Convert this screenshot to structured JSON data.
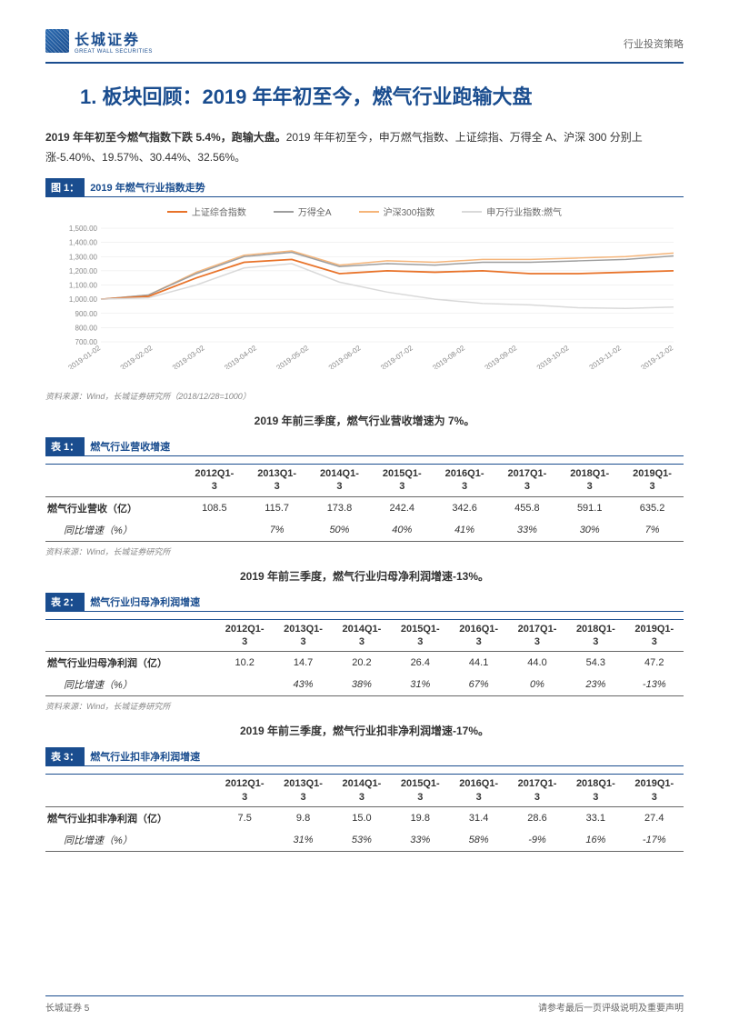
{
  "header": {
    "logo_cn": "长城证券",
    "logo_en": "GREAT WALL SECURITIES",
    "right_text": "行业投资策略"
  },
  "h1": "1. 板块回顾：2019 年年初至今，燃气行业跑输大盘",
  "intro": {
    "bold": "2019 年年初至今燃气指数下跌 5.4%，跑输大盘。",
    "rest": "2019 年年初至今，申万燃气指数、上证综指、万得全 A、沪深 300 分别上涨-5.40%、19.57%、30.44%、32.56%。"
  },
  "chart": {
    "fig_tag": "图 1：",
    "fig_caption": "2019 年燃气行业指数走势",
    "type": "line",
    "legend": [
      {
        "label": "上证综合指数",
        "color": "#e8732a"
      },
      {
        "label": "万得全A",
        "color": "#9e9e9e"
      },
      {
        "label": "沪深300指数",
        "color": "#f5b57a"
      },
      {
        "label": "申万行业指数:燃气",
        "color": "#d9d9d9"
      }
    ],
    "y_ticks": [
      "1,500.00",
      "1,400.00",
      "1,300.00",
      "1,200.00",
      "1,100.00",
      "1,000.00",
      "900.00",
      "800.00",
      "700.00"
    ],
    "ylim": [
      700,
      1500
    ],
    "x_labels": [
      "2019-01-02",
      "2019-02-02",
      "2019-03-02",
      "2019-04-02",
      "2019-05-02",
      "2019-06-02",
      "2019-07-02",
      "2019-08-02",
      "2019-09-02",
      "2019-10-02",
      "2019-11-02",
      "2019-12-02"
    ],
    "series": {
      "szzs": [
        1000,
        1020,
        1150,
        1260,
        1280,
        1180,
        1200,
        1190,
        1200,
        1180,
        1180,
        1190,
        1200
      ],
      "wdqa": [
        1000,
        1030,
        1180,
        1300,
        1330,
        1230,
        1250,
        1240,
        1260,
        1260,
        1270,
        1280,
        1305
      ],
      "hs300": [
        1000,
        1030,
        1190,
        1310,
        1340,
        1240,
        1270,
        1260,
        1280,
        1280,
        1290,
        1300,
        1325
      ],
      "swrq": [
        1000,
        1010,
        1100,
        1220,
        1250,
        1120,
        1050,
        1000,
        970,
        960,
        940,
        935,
        945
      ]
    },
    "colors": {
      "szzs": "#e8732a",
      "wdqa": "#9e9e9e",
      "hs300": "#f5b57a",
      "swrq": "#d9d9d9",
      "grid": "#e6e6e6",
      "axis_text": "#888888"
    },
    "source": "资料来源：Wind，长城证券研究所（2018/12/28=1000）"
  },
  "section_revenue": {
    "heading": "2019 年前三季度，燃气行业营收增速为 7%。",
    "fig_tag": "表 1：",
    "fig_caption": "燃气行业营收增速",
    "columns": [
      "",
      "2012Q1-3",
      "2013Q1-3",
      "2014Q1-3",
      "2015Q1-3",
      "2016Q1-3",
      "2017Q1-3",
      "2018Q1-3",
      "2019Q1-3"
    ],
    "row_label": "燃气行业营收（亿）",
    "row_values": [
      "108.5",
      "115.7",
      "173.8",
      "242.4",
      "342.6",
      "455.8",
      "591.1",
      "635.2"
    ],
    "growth_label": "同比增速（%）",
    "growth_values": [
      "",
      "7%",
      "50%",
      "40%",
      "41%",
      "33%",
      "30%",
      "7%"
    ],
    "source": "资料来源：Wind，长城证券研究所"
  },
  "section_netprofit": {
    "heading": "2019 年前三季度，燃气行业归母净利润增速-13%。",
    "fig_tag": "表 2：",
    "fig_caption": "燃气行业归母净利润增速",
    "columns": [
      "",
      "2012Q1-3",
      "2013Q1-3",
      "2014Q1-3",
      "2015Q1-3",
      "2016Q1-3",
      "2017Q1-3",
      "2018Q1-3",
      "2019Q1-3"
    ],
    "row_label": "燃气行业归母净利润（亿）",
    "row_values": [
      "10.2",
      "14.7",
      "20.2",
      "26.4",
      "44.1",
      "44.0",
      "54.3",
      "47.2"
    ],
    "growth_label": "同比增速（%）",
    "growth_values": [
      "",
      "43%",
      "38%",
      "31%",
      "67%",
      "0%",
      "23%",
      "-13%"
    ],
    "source": "资料来源：Wind，长城证券研究所"
  },
  "section_exprofit": {
    "heading": "2019 年前三季度，燃气行业扣非净利润增速-17%。",
    "fig_tag": "表 3：",
    "fig_caption": "燃气行业扣非净利润增速",
    "columns": [
      "",
      "2012Q1-3",
      "2013Q1-3",
      "2014Q1-3",
      "2015Q1-3",
      "2016Q1-3",
      "2017Q1-3",
      "2018Q1-3",
      "2019Q1-3"
    ],
    "row_label": "燃气行业扣非净利润（亿）",
    "row_values": [
      "7.5",
      "9.8",
      "15.0",
      "19.8",
      "31.4",
      "28.6",
      "33.1",
      "27.4"
    ],
    "growth_label": "同比增速（%）",
    "growth_values": [
      "",
      "31%",
      "53%",
      "33%",
      "58%",
      "-9%",
      "16%",
      "-17%"
    ]
  },
  "footer": {
    "left": "长城证券 5",
    "right": "请参考最后一页评级说明及重要声明"
  }
}
